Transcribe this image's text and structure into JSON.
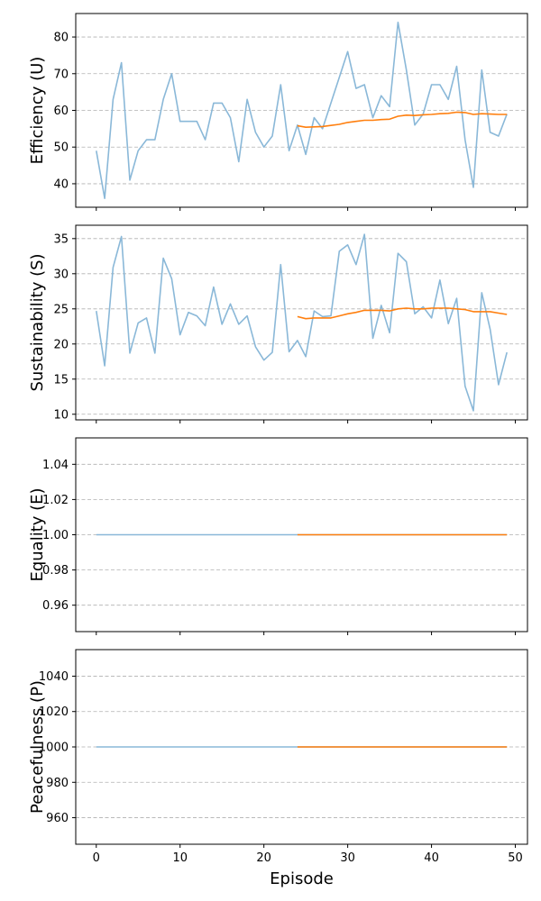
{
  "colors": {
    "raw": "#8ab8d8",
    "smooth": "#ff7f0e",
    "grid": "#b0b0b0"
  },
  "chart_data": [
    {
      "type": "line",
      "ylabel": "Efficiency (U)",
      "xlabel": "",
      "xlim": [
        -2.45,
        51.45
      ],
      "ylim": [
        33.6,
        86.4
      ],
      "yticks": [
        40,
        50,
        60,
        70,
        80
      ],
      "ytick_labels": [
        "40",
        "50",
        "60",
        "70",
        "80"
      ],
      "grid": "horizontal dashed",
      "series": [
        {
          "role": "raw",
          "x": [
            0,
            1,
            2,
            3,
            4,
            5,
            6,
            7,
            8,
            9,
            10,
            11,
            12,
            13,
            14,
            15,
            16,
            17,
            18,
            19,
            20,
            21,
            22,
            23,
            24,
            25,
            26,
            27,
            28,
            29,
            30,
            31,
            32,
            33,
            34,
            35,
            36,
            37,
            38,
            39,
            40,
            41,
            42,
            43,
            44,
            45,
            46,
            47,
            48,
            49
          ],
          "values": [
            49,
            36,
            63,
            73,
            41,
            49,
            52,
            52,
            63,
            70,
            57,
            57,
            57,
            52,
            62,
            62,
            58,
            46,
            63,
            54,
            50,
            53,
            67,
            49,
            56,
            48,
            58,
            55,
            62,
            69,
            76,
            66,
            67,
            58,
            64,
            61,
            84,
            71,
            56,
            59,
            67,
            67,
            63,
            72,
            52,
            39,
            71,
            54,
            53,
            59
          ]
        },
        {
          "role": "moving-average",
          "x": [
            24,
            25,
            26,
            27,
            28,
            29,
            30,
            31,
            32,
            33,
            34,
            35,
            36,
            37,
            38,
            39,
            40,
            41,
            42,
            43,
            44,
            45,
            46,
            47,
            48,
            49
          ],
          "values": [
            55.8,
            55.4,
            55.5,
            55.6,
            55.9,
            56.2,
            56.7,
            57.0,
            57.3,
            57.3,
            57.5,
            57.6,
            58.4,
            58.7,
            58.6,
            58.8,
            58.9,
            59.1,
            59.2,
            59.5,
            59.4,
            58.9,
            59.1,
            59.0,
            58.9,
            58.9
          ]
        }
      ]
    },
    {
      "type": "line",
      "ylabel": "Sustainability (S)",
      "xlabel": "",
      "xlim": [
        -2.45,
        51.45
      ],
      "ylim": [
        9.2,
        36.9
      ],
      "yticks": [
        10,
        15,
        20,
        25,
        30,
        35
      ],
      "ytick_labels": [
        "10",
        "15",
        "20",
        "25",
        "30",
        "35"
      ],
      "grid": "horizontal dashed",
      "series": [
        {
          "role": "raw",
          "x": [
            0,
            1,
            2,
            3,
            4,
            5,
            6,
            7,
            8,
            9,
            10,
            11,
            12,
            13,
            14,
            15,
            16,
            17,
            18,
            19,
            20,
            21,
            22,
            23,
            24,
            25,
            26,
            27,
            28,
            29,
            30,
            31,
            32,
            33,
            34,
            35,
            36,
            37,
            38,
            39,
            40,
            41,
            42,
            43,
            44,
            45,
            46,
            47,
            48,
            49
          ],
          "values": [
            24.7,
            16.9,
            30.9,
            35.3,
            18.7,
            23.0,
            23.7,
            18.7,
            32.2,
            29.3,
            21.3,
            24.5,
            24.0,
            22.6,
            28.1,
            22.8,
            25.7,
            22.8,
            24.0,
            19.6,
            17.7,
            18.8,
            31.3,
            18.9,
            20.5,
            18.2,
            24.7,
            23.9,
            24.0,
            33.2,
            34.1,
            31.3,
            35.6,
            20.8,
            25.5,
            21.6,
            32.9,
            31.7,
            24.3,
            25.3,
            23.7,
            29.1,
            22.9,
            26.5,
            14.0,
            10.5,
            27.3,
            22.1,
            14.2,
            18.8
          ]
        },
        {
          "role": "moving-average",
          "x": [
            24,
            25,
            26,
            27,
            28,
            29,
            30,
            31,
            32,
            33,
            34,
            35,
            36,
            37,
            38,
            39,
            40,
            41,
            42,
            43,
            44,
            45,
            46,
            47,
            48,
            49
          ],
          "values": [
            23.9,
            23.6,
            23.7,
            23.7,
            23.7,
            24.0,
            24.3,
            24.5,
            24.8,
            24.8,
            24.8,
            24.7,
            25.0,
            25.1,
            25.0,
            25.0,
            25.1,
            25.1,
            25.1,
            25.0,
            24.9,
            24.6,
            24.6,
            24.6,
            24.4,
            24.2
          ]
        }
      ]
    },
    {
      "type": "line",
      "ylabel": "Equality (E)",
      "xlabel": "",
      "xlim": [
        -2.45,
        51.45
      ],
      "ylim": [
        0.945,
        1.055
      ],
      "yticks": [
        0.96,
        0.98,
        1.0,
        1.02,
        1.04
      ],
      "ytick_labels": [
        "0.96",
        "0.98",
        "1.00",
        "1.02",
        "1.04"
      ],
      "grid": "horizontal dashed",
      "series": [
        {
          "role": "raw",
          "x": [
            0,
            49
          ],
          "values": [
            1.0,
            1.0
          ]
        },
        {
          "role": "moving-average",
          "x": [
            24,
            49
          ],
          "values": [
            1.0,
            1.0
          ]
        }
      ]
    },
    {
      "type": "line",
      "ylabel": "Peacefulness (P)",
      "xlabel": "Episode",
      "xlim": [
        -2.45,
        51.45
      ],
      "ylim": [
        945,
        1055
      ],
      "yticks": [
        960,
        980,
        1000,
        1020,
        1040
      ],
      "ytick_labels": [
        "960",
        "980",
        "1000",
        "1020",
        "1040"
      ],
      "xticks": [
        0,
        10,
        20,
        30,
        40,
        50
      ],
      "xtick_labels": [
        "0",
        "10",
        "20",
        "30",
        "40",
        "50"
      ],
      "grid": "horizontal dashed",
      "series": [
        {
          "role": "raw",
          "x": [
            0,
            49
          ],
          "values": [
            1000,
            1000
          ]
        },
        {
          "role": "moving-average",
          "x": [
            24,
            49
          ],
          "values": [
            1000,
            1000
          ]
        }
      ]
    }
  ]
}
